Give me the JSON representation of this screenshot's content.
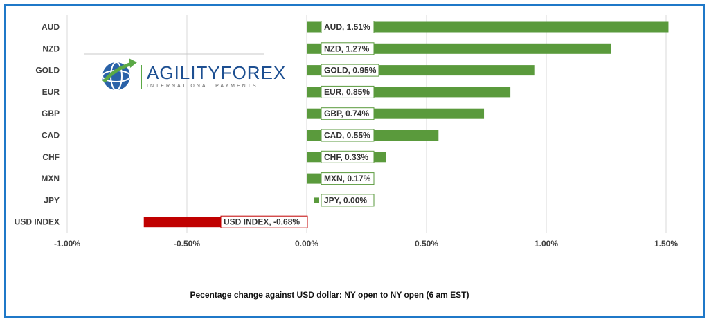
{
  "logo": {
    "name": "AGILITYFOREX",
    "tagline": "INTERNATIONAL PAYMENTS"
  },
  "colors": {
    "positive": "#5a9a3c",
    "negative": "#c00000",
    "frame": "#1f78c8"
  },
  "chart_data": {
    "type": "bar",
    "orientation": "horizontal",
    "categories": [
      "AUD",
      "NZD",
      "GOLD",
      "EUR",
      "GBP",
      "CAD",
      "CHF",
      "MXN",
      "JPY",
      "USD INDEX"
    ],
    "values": [
      1.51,
      1.27,
      0.95,
      0.85,
      0.74,
      0.55,
      0.33,
      0.17,
      0.0,
      -0.68
    ],
    "data_labels": [
      "AUD, 1.51%",
      "NZD, 1.27%",
      "GOLD, 0.95%",
      "EUR, 0.85%",
      "GBP, 0.74%",
      "CAD, 0.55%",
      "CHF, 0.33%",
      "MXN, 0.17%",
      "JPY, 0.00%",
      "USD INDEX, -0.68%"
    ],
    "value_unit": "%",
    "xlim": [
      -1.0,
      1.5
    ],
    "xticks": [
      -1.0,
      -0.5,
      0.0,
      0.5,
      1.0,
      1.5
    ],
    "xtick_labels": [
      "-1.00%",
      "-0.50%",
      "0.00%",
      "0.50%",
      "1.00%",
      "1.50%"
    ],
    "xlabel": "Pecentage change against USD dollar:  NY open to NY open  (6 am EST)",
    "grid": "vertical",
    "legend": "none"
  }
}
